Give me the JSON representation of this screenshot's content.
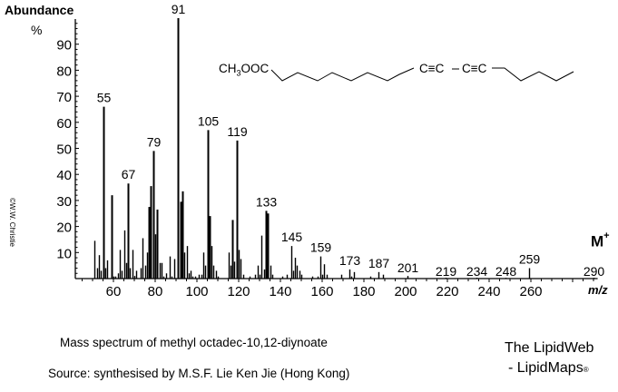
{
  "chart_data": {
    "type": "bar",
    "title": "Mass spectrum of methyl octadec-10,12-diynoate",
    "xlabel": "m/z",
    "ylabel": "Abundance %",
    "xlim": [
      40,
      300
    ],
    "ylim": [
      0,
      100
    ],
    "xticks": [
      60,
      80,
      100,
      120,
      140,
      160,
      180,
      200,
      220,
      240,
      260
    ],
    "yticks": [
      10,
      20,
      30,
      40,
      50,
      60,
      70,
      80,
      90
    ],
    "molecular_ion_label": "M+",
    "peaks": [
      {
        "mz": 51,
        "abundance": 14.5
      },
      {
        "mz": 52,
        "abundance": 4
      },
      {
        "mz": 53,
        "abundance": 9
      },
      {
        "mz": 54,
        "abundance": 3
      },
      {
        "mz": 55,
        "abundance": 66,
        "label": "55"
      },
      {
        "mz": 56,
        "abundance": 4
      },
      {
        "mz": 57,
        "abundance": 7
      },
      {
        "mz": 59,
        "abundance": 32
      },
      {
        "mz": 60,
        "abundance": 0.8
      },
      {
        "mz": 61,
        "abundance": 0.8
      },
      {
        "mz": 62,
        "abundance": 2
      },
      {
        "mz": 63,
        "abundance": 11
      },
      {
        "mz": 64,
        "abundance": 3
      },
      {
        "mz": 65,
        "abundance": 18.5
      },
      {
        "mz": 66,
        "abundance": 6
      },
      {
        "mz": 67,
        "abundance": 36.5,
        "label": "67"
      },
      {
        "mz": 68,
        "abundance": 4
      },
      {
        "mz": 69,
        "abundance": 11
      },
      {
        "mz": 70,
        "abundance": 1
      },
      {
        "mz": 71,
        "abundance": 3
      },
      {
        "mz": 73,
        "abundance": 4
      },
      {
        "mz": 74,
        "abundance": 15.5
      },
      {
        "mz": 75,
        "abundance": 5
      },
      {
        "mz": 76,
        "abundance": 10
      },
      {
        "mz": 77,
        "abundance": 27.5
      },
      {
        "mz": 78,
        "abundance": 35.5
      },
      {
        "mz": 79,
        "abundance": 49,
        "label": "79"
      },
      {
        "mz": 80,
        "abundance": 17
      },
      {
        "mz": 81,
        "abundance": 26.5
      },
      {
        "mz": 82,
        "abundance": 6
      },
      {
        "mz": 83,
        "abundance": 6
      },
      {
        "mz": 84,
        "abundance": 0.8
      },
      {
        "mz": 85,
        "abundance": 2
      },
      {
        "mz": 87,
        "abundance": 8.5
      },
      {
        "mz": 88,
        "abundance": 0.8
      },
      {
        "mz": 89,
        "abundance": 7.5
      },
      {
        "mz": 91,
        "abundance": 100,
        "label": "91"
      },
      {
        "mz": 92,
        "abundance": 29.5
      },
      {
        "mz": 93,
        "abundance": 33.5
      },
      {
        "mz": 94,
        "abundance": 10
      },
      {
        "mz": 95,
        "abundance": 12.5
      },
      {
        "mz": 96,
        "abundance": 2
      },
      {
        "mz": 97,
        "abundance": 3
      },
      {
        "mz": 98,
        "abundance": 0.8
      },
      {
        "mz": 99,
        "abundance": 0.8
      },
      {
        "mz": 101,
        "abundance": 1.5
      },
      {
        "mz": 102,
        "abundance": 1.5
      },
      {
        "mz": 103,
        "abundance": 10
      },
      {
        "mz": 104,
        "abundance": 5
      },
      {
        "mz": 105,
        "abundance": 57,
        "label": "105"
      },
      {
        "mz": 106,
        "abundance": 24
      },
      {
        "mz": 107,
        "abundance": 12.5
      },
      {
        "mz": 108,
        "abundance": 5
      },
      {
        "mz": 109,
        "abundance": 3
      },
      {
        "mz": 110,
        "abundance": 0.8
      },
      {
        "mz": 115,
        "abundance": 10
      },
      {
        "mz": 116,
        "abundance": 5
      },
      {
        "mz": 117,
        "abundance": 22.5
      },
      {
        "mz": 118,
        "abundance": 6.5
      },
      {
        "mz": 119,
        "abundance": 53,
        "label": "119"
      },
      {
        "mz": 120,
        "abundance": 11
      },
      {
        "mz": 121,
        "abundance": 7.5
      },
      {
        "mz": 122,
        "abundance": 1.5
      },
      {
        "mz": 125,
        "abundance": 0.8
      },
      {
        "mz": 128,
        "abundance": 1.5
      },
      {
        "mz": 129,
        "abundance": 5
      },
      {
        "mz": 130,
        "abundance": 1.5
      },
      {
        "mz": 131,
        "abundance": 16.5
      },
      {
        "mz": 132,
        "abundance": 3.5
      },
      {
        "mz": 133,
        "abundance": 26,
        "label": "133"
      },
      {
        "mz": 134,
        "abundance": 25
      },
      {
        "mz": 135,
        "abundance": 5
      },
      {
        "mz": 136,
        "abundance": 1.5
      },
      {
        "mz": 141,
        "abundance": 0.8
      },
      {
        "mz": 143,
        "abundance": 1.5
      },
      {
        "mz": 145,
        "abundance": 12.5,
        "label": "145"
      },
      {
        "mz": 146,
        "abundance": 3
      },
      {
        "mz": 147,
        "abundance": 8
      },
      {
        "mz": 148,
        "abundance": 5
      },
      {
        "mz": 149,
        "abundance": 3
      },
      {
        "mz": 150,
        "abundance": 1.5
      },
      {
        "mz": 155,
        "abundance": 0.8
      },
      {
        "mz": 158,
        "abundance": 0.8
      },
      {
        "mz": 159,
        "abundance": 8.5,
        "label": "159"
      },
      {
        "mz": 160,
        "abundance": 1.5
      },
      {
        "mz": 161,
        "abundance": 5.5
      },
      {
        "mz": 162,
        "abundance": 1.5
      },
      {
        "mz": 169,
        "abundance": 1.5
      },
      {
        "mz": 173,
        "abundance": 3.5,
        "label": "173"
      },
      {
        "mz": 174,
        "abundance": 0.8
      },
      {
        "mz": 175,
        "abundance": 2.5
      },
      {
        "mz": 183,
        "abundance": 0.8
      },
      {
        "mz": 187,
        "abundance": 2.5,
        "label": "187"
      },
      {
        "mz": 189,
        "abundance": 1.5
      },
      {
        "mz": 201,
        "abundance": 1,
        "label": "201"
      },
      {
        "mz": 219,
        "abundance": 0.3,
        "label": "219"
      },
      {
        "mz": 234,
        "abundance": 0.3,
        "label": "234"
      },
      {
        "mz": 248,
        "abundance": 0.3,
        "label": "248"
      },
      {
        "mz": 259,
        "abundance": 4,
        "label": "259"
      },
      {
        "mz": 290,
        "abundance": 0.3,
        "label": "290"
      }
    ]
  },
  "axis": {
    "ylabel_title": "Abundance",
    "ylabel_unit": "%",
    "xlabel": "m/z",
    "molecular_ion": "M",
    "molecular_ion_sup": "+"
  },
  "structure": {
    "prefix": "CH",
    "sub": "3",
    "suffix": "OOC",
    "group1": "C≡C",
    "group2": "C≡C"
  },
  "watermark": "©W.W. Christie",
  "caption": "Mass spectrum of methyl octadec-10,12-diynoate",
  "source": "Source:  synthesised by M.S.F. Lie Ken Jie (Hong Kong)",
  "brand": {
    "line1": "The LipidWeb",
    "line2": "- LipidMaps",
    "reg": "®"
  }
}
